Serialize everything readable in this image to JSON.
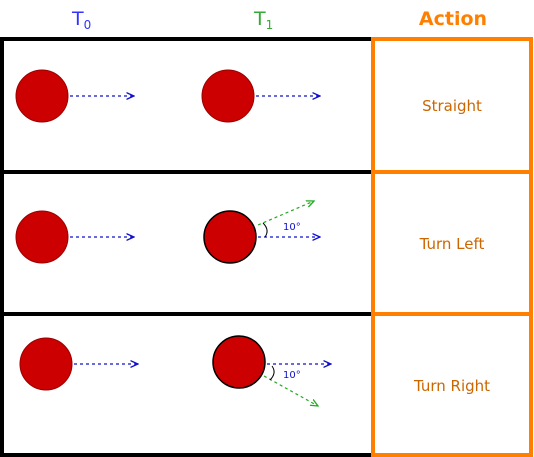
{
  "header": {
    "t0_base": "T",
    "t0_sub": "0",
    "t1_base": "T",
    "t1_sub": "1",
    "action": "Action"
  },
  "colors": {
    "t0": "#3333ff",
    "t1": "#33aa33",
    "action": "#ff8000",
    "action_text": "#cc6600",
    "ball": "#cc0000",
    "blue_arrow": "#1010cc",
    "green_arrow": "#22aa22"
  },
  "rows": [
    {
      "action": "Straight",
      "angle_label": ""
    },
    {
      "action": "Turn Left",
      "angle_label": "10°"
    },
    {
      "action": "Turn Right",
      "angle_label": "10°"
    }
  ]
}
